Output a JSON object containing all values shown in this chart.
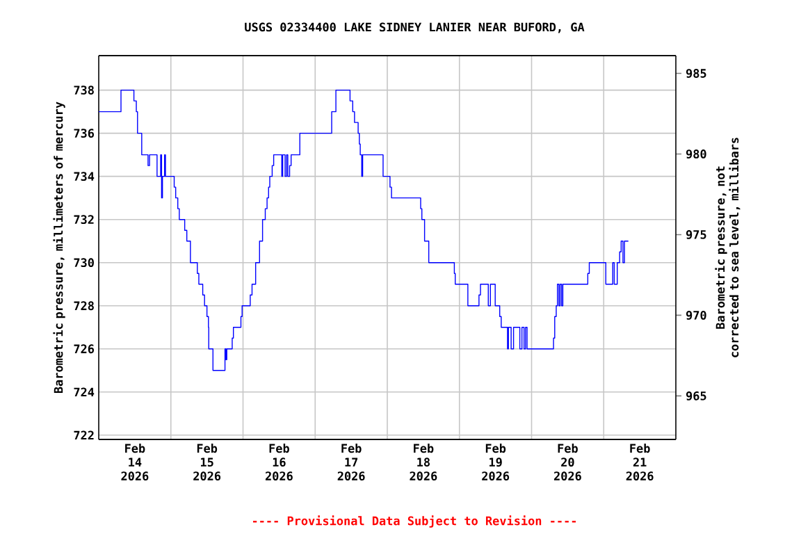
{
  "chart_data": {
    "type": "step",
    "title": "USGS 02334400 LAKE SIDNEY LANIER NEAR BUFORD, GA",
    "ylabel": "Barometric pressure, millimeters of mercury",
    "y2label": "Barometric pressure, not corrected to sea level, millibars",
    "annotations": [
      "---- Provisional Data Subject to Revision ----"
    ],
    "color": "#0000ff",
    "grid": true,
    "xlim": [
      "2026-02-14T00:00",
      "2026-02-22T00:00"
    ],
    "xticks": [
      {
        "value": "2026-02-14T12:00",
        "label": "Feb 14 2026"
      },
      {
        "value": "2026-02-15T12:00",
        "label": "Feb 15 2026"
      },
      {
        "value": "2026-02-16T12:00",
        "label": "Feb 16 2026"
      },
      {
        "value": "2026-02-17T12:00",
        "label": "Feb 17 2026"
      },
      {
        "value": "2026-02-18T12:00",
        "label": "Feb 18 2026"
      },
      {
        "value": "2026-02-19T12:00",
        "label": "Feb 19 2026"
      },
      {
        "value": "2026-02-20T12:00",
        "label": "Feb 20 2026"
      },
      {
        "value": "2026-02-21T12:00",
        "label": "Feb 21 2026"
      },
      {
        "value": "2026-02-15T00:00",
        "label": null
      },
      {
        "value": "2026-02-16T00:00",
        "label": null
      },
      {
        "value": "2026-02-17T00:00",
        "label": null
      },
      {
        "value": "2026-02-18T00:00",
        "label": null
      },
      {
        "value": "2026-02-19T00:00",
        "label": null
      },
      {
        "value": "2026-02-20T00:00",
        "label": null
      },
      {
        "value": "2026-02-21T00:00",
        "label": null
      }
    ],
    "ylim": [
      721.8,
      739.6
    ],
    "yticks": [
      722,
      724,
      726,
      728,
      730,
      732,
      734,
      736,
      738
    ],
    "y2lim": [
      962.3,
      986.1
    ],
    "y2ticks": [
      965,
      970,
      975,
      980,
      985
    ],
    "x": [
      "2026-02-14T00:00",
      "2026-02-14T07:24",
      "2026-02-14T11:42",
      "2026-02-14T12:30",
      "2026-02-14T12:54",
      "2026-02-14T14:18",
      "2026-02-14T16:24",
      "2026-02-14T16:54",
      "2026-02-14T19:24",
      "2026-02-14T20:36",
      "2026-02-14T20:54",
      "2026-02-14T21:12",
      "2026-02-14T21:54",
      "2026-02-14T22:12",
      "2026-02-15T01:06",
      "2026-02-15T01:36",
      "2026-02-15T02:18",
      "2026-02-15T02:48",
      "2026-02-15T04:36",
      "2026-02-15T05:18",
      "2026-02-15T06:30",
      "2026-02-15T08:48",
      "2026-02-15T09:18",
      "2026-02-15T10:36",
      "2026-02-15T11:12",
      "2026-02-15T12:00",
      "2026-02-15T12:30",
      "2026-02-15T12:36",
      "2026-02-15T14:00",
      "2026-02-15T18:00",
      "2026-02-15T18:18",
      "2026-02-15T18:36",
      "2026-02-15T20:24",
      "2026-02-15T20:48",
      "2026-02-15T23:18",
      "2026-02-15T23:42",
      "2026-02-16T02:24",
      "2026-02-16T03:00",
      "2026-02-16T04:12",
      "2026-02-16T05:30",
      "2026-02-16T06:30",
      "2026-02-16T07:24",
      "2026-02-16T08:00",
      "2026-02-16T08:30",
      "2026-02-16T08:54",
      "2026-02-16T09:42",
      "2026-02-16T10:12",
      "2026-02-16T12:54",
      "2026-02-16T13:12",
      "2026-02-16T14:00",
      "2026-02-16T14:30",
      "2026-02-16T14:54",
      "2026-02-16T15:30",
      "2026-02-16T16:00",
      "2026-02-16T18:54",
      "2026-02-17T05:30",
      "2026-02-17T06:54",
      "2026-02-17T11:36",
      "2026-02-17T12:30",
      "2026-02-17T13:06",
      "2026-02-17T14:18",
      "2026-02-17T14:42",
      "2026-02-17T15:00",
      "2026-02-17T15:30",
      "2026-02-17T15:48",
      "2026-02-17T22:36",
      "2026-02-18T00:54",
      "2026-02-18T01:24",
      "2026-02-18T11:06",
      "2026-02-18T11:30",
      "2026-02-18T12:24",
      "2026-02-18T13:48",
      "2026-02-18T22:18",
      "2026-02-18T22:36",
      "2026-02-19T02:48",
      "2026-02-19T06:30",
      "2026-02-19T07:00",
      "2026-02-19T09:36",
      "2026-02-19T10:18",
      "2026-02-19T11:54",
      "2026-02-19T13:24",
      "2026-02-19T13:54",
      "2026-02-19T16:00",
      "2026-02-19T16:18",
      "2026-02-19T17:12",
      "2026-02-19T18:00",
      "2026-02-19T20:06",
      "2026-02-19T20:48",
      "2026-02-19T21:30",
      "2026-02-19T22:00",
      "2026-02-19T22:30",
      "2026-02-20T07:18",
      "2026-02-20T07:42",
      "2026-02-20T08:12",
      "2026-02-20T08:36",
      "2026-02-20T09:06",
      "2026-02-20T09:30",
      "2026-02-20T10:00",
      "2026-02-20T10:24",
      "2026-02-20T18:42",
      "2026-02-20T19:12",
      "2026-02-21T00:42",
      "2026-02-21T03:00",
      "2026-02-21T03:30",
      "2026-02-21T04:30",
      "2026-02-21T05:18",
      "2026-02-21T05:48",
      "2026-02-21T06:24",
      "2026-02-21T06:54",
      "2026-02-21T08:12"
    ],
    "values": [
      737,
      738,
      737.5,
      737,
      736,
      735,
      734.5,
      735,
      734,
      735,
      733,
      734,
      735,
      734,
      733.5,
      733,
      732.5,
      732,
      731.5,
      731,
      730,
      729.5,
      729,
      728.5,
      728,
      727.5,
      727,
      726,
      725,
      726,
      725.5,
      726,
      726.5,
      727,
      727.5,
      728,
      728.5,
      729,
      730,
      731,
      732,
      732.5,
      733,
      733.5,
      734,
      734.5,
      735,
      734,
      735,
      734,
      735,
      734,
      734.5,
      735,
      736,
      737,
      738,
      737.5,
      737,
      736.5,
      736,
      735.5,
      735,
      734,
      735,
      734,
      733.5,
      733,
      732.5,
      732,
      731,
      730,
      729.5,
      729,
      728,
      728.5,
      729,
      728,
      729,
      728,
      727.5,
      727,
      726,
      727,
      726,
      727,
      726,
      727,
      726,
      727,
      726,
      726.5,
      727.5,
      728,
      729,
      728,
      729,
      728,
      729,
      729.5,
      730,
      729,
      730,
      729,
      730,
      730.5,
      731,
      730,
      731,
      731
    ]
  }
}
